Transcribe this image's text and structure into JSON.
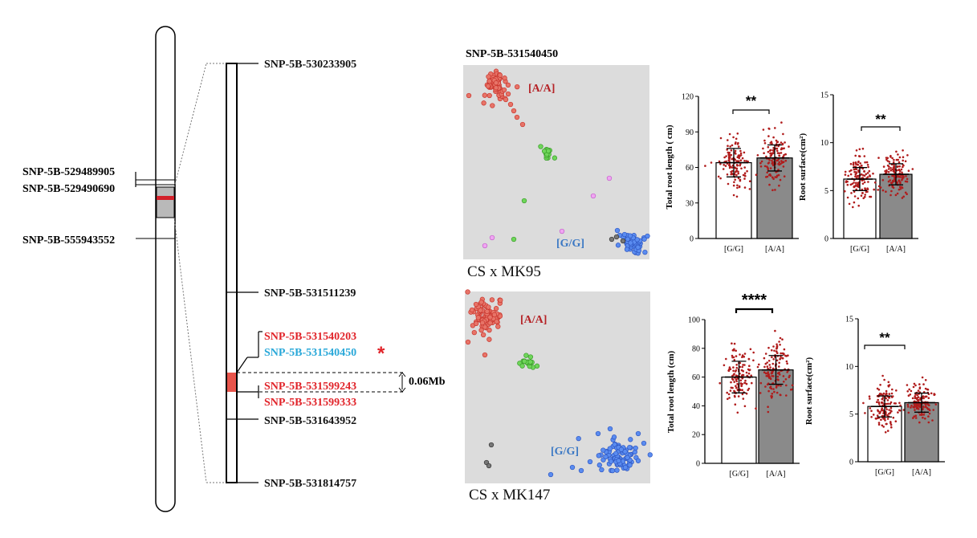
{
  "colors": {
    "red_label": "#e1242a",
    "cyan_label": "#29a8d9",
    "cluster_red": "#e0534a",
    "cluster_green": "#4fc43a",
    "cluster_blue": "#3d6fe0",
    "cluster_pink": "#e07ae8",
    "cluster_gray": "#555555",
    "panel_bg": "#dcdcdc",
    "bar_aa": "#8a8a8a",
    "dot": "#b01c1c",
    "interval": "#e8544b",
    "marker": "#d3202a"
  },
  "chromosome": {
    "left_markers": [
      "SNP-5B-529489905",
      "SNP-5B-529490690",
      "SNP-5B-555943552"
    ]
  },
  "zoom": {
    "markers": [
      {
        "label": "SNP-5B-530233905",
        "color": "black"
      },
      {
        "label": "SNP-5B-531511239",
        "color": "black"
      },
      {
        "label": "SNP-5B-531540203",
        "color": "red"
      },
      {
        "label": "SNP-5B-531540450",
        "color": "cyan"
      },
      {
        "label": "SNP-5B-531599243",
        "color": "red"
      },
      {
        "label": "SNP-5B-531599333",
        "color": "red"
      },
      {
        "label": "SNP-5B-531643952",
        "color": "black"
      },
      {
        "label": "SNP-5B-531814757",
        "color": "black"
      }
    ],
    "star": "*",
    "interval_label": "0.06Mb"
  },
  "snp_title": "SNP-5B-531540450",
  "populations": [
    {
      "name": "CS x MK95",
      "label_aa": "[A/A]",
      "label_gg": "[G/G]"
    },
    {
      "name": "CS x MK147",
      "label_aa": "[A/A]",
      "label_gg": "[G/G]"
    }
  ],
  "chart_data": [
    {
      "type": "bar",
      "population": "CS x MK95",
      "ylabel": "Total root length ( cm)",
      "categories": [
        "[G/G]",
        "[A/A]"
      ],
      "values": [
        64,
        68
      ],
      "sd": [
        12,
        11
      ],
      "ylim": [
        0,
        120
      ],
      "yticks": [
        "0",
        "30",
        "60",
        "90",
        "120"
      ],
      "significance": "**"
    },
    {
      "type": "bar",
      "population": "CS x MK95",
      "ylabel": "Root surface(cm²)",
      "categories": [
        "[G/G]",
        "[A/A]"
      ],
      "values": [
        6.2,
        6.7
      ],
      "sd": [
        1.2,
        1.1
      ],
      "ylim": [
        0,
        15
      ],
      "yticks": [
        "0",
        "5",
        "10",
        "15"
      ],
      "significance": "**"
    },
    {
      "type": "bar",
      "population": "CS x MK147",
      "ylabel": "Total root length (cm)",
      "categories": [
        "[G/G]",
        "[A/A]"
      ],
      "values": [
        60,
        65
      ],
      "sd": [
        11,
        10
      ],
      "ylim": [
        0,
        100
      ],
      "yticks": [
        "0",
        "20",
        "40",
        "60",
        "80",
        "100"
      ],
      "significance": "****"
    },
    {
      "type": "bar",
      "population": "CS x MK147",
      "ylabel": "Root surface(cm²)",
      "categories": [
        "[G/G]",
        "[A/A]"
      ],
      "values": [
        5.8,
        6.2
      ],
      "sd": [
        1.1,
        1.0
      ],
      "ylim": [
        0,
        15
      ],
      "yticks": [
        "0",
        "5",
        "10",
        "15"
      ],
      "significance": "**"
    }
  ]
}
